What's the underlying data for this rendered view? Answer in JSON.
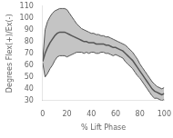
{
  "chart_data": {
    "type": "line",
    "xlabel": "% Lift Phase",
    "ylabel": "Degrees Flex(+)/Ex(-)",
    "xlim": [
      0,
      100
    ],
    "ylim": [
      30,
      110
    ],
    "xticks": [
      0,
      20,
      40,
      60,
      80,
      100
    ],
    "yticks": [
      30,
      40,
      50,
      60,
      70,
      80,
      90,
      100,
      110
    ],
    "grid": false,
    "color": "#555555",
    "x": [
      0,
      2,
      4,
      6,
      8,
      10,
      12,
      14,
      16,
      18,
      20,
      22,
      24,
      26,
      28,
      30,
      32,
      34,
      36,
      38,
      40,
      42,
      44,
      46,
      48,
      50,
      52,
      54,
      56,
      58,
      60,
      62,
      64,
      66,
      68,
      70,
      72,
      74,
      76,
      78,
      80,
      82,
      84,
      86,
      88,
      90,
      92,
      94,
      96,
      98,
      100
    ],
    "values": [
      63,
      70,
      75,
      79,
      82,
      85,
      87,
      88,
      88,
      88,
      87,
      86,
      85,
      84,
      83,
      82,
      81,
      80,
      80,
      79,
      79,
      79,
      78,
      78,
      78,
      78,
      77,
      77,
      76,
      75,
      75,
      74,
      73,
      72,
      70,
      68,
      66,
      64,
      61,
      58,
      55,
      52,
      49,
      46,
      43,
      40,
      38,
      37,
      36,
      35,
      36
    ],
    "upper": [
      64,
      90,
      97,
      101,
      104,
      106,
      107,
      108,
      108,
      108,
      107,
      104,
      101,
      98,
      95,
      93,
      91,
      90,
      89,
      88,
      87,
      87,
      86,
      86,
      85,
      85,
      84,
      84,
      83,
      82,
      81,
      80,
      79,
      78,
      77,
      75,
      73,
      71,
      68,
      65,
      61,
      58,
      55,
      52,
      49,
      46,
      44,
      42,
      41,
      40,
      41
    ],
    "lower": [
      62,
      50,
      53,
      57,
      60,
      64,
      67,
      68,
      68,
      68,
      67,
      68,
      69,
      70,
      71,
      71,
      71,
      70,
      71,
      70,
      71,
      71,
      70,
      70,
      71,
      71,
      70,
      70,
      69,
      68,
      69,
      68,
      67,
      66,
      63,
      61,
      59,
      57,
      54,
      51,
      49,
      46,
      43,
      40,
      37,
      34,
      32,
      32,
      31,
      30,
      31
    ]
  }
}
